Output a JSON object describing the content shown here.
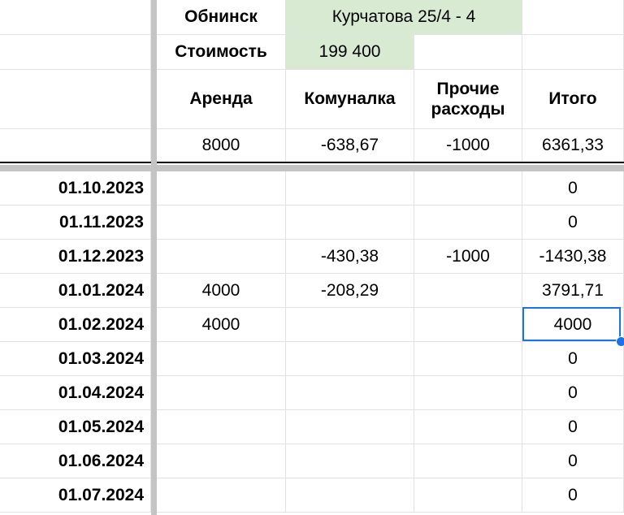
{
  "header": {
    "city": "Обнинск",
    "address": "Курчатова 25/4 - 4",
    "cost_label": "Стоимость",
    "cost_value": "199 400",
    "columns": [
      "Аренда",
      "Комуналка",
      "Прочие расходы",
      "Итого"
    ],
    "column_prochie_line1": "Прочие",
    "column_prochie_line2": "расходы",
    "totals": [
      "8000",
      "-638,67",
      "-1000",
      "6361,33"
    ]
  },
  "rows": [
    {
      "date": "01.10.2023",
      "rent": "",
      "utilities": "",
      "other": "",
      "total": "0"
    },
    {
      "date": "01.11.2023",
      "rent": "",
      "utilities": "",
      "other": "",
      "total": "0"
    },
    {
      "date": "01.12.2023",
      "rent": "",
      "utilities": "-430,38",
      "other": "-1000",
      "total": "-1430,38"
    },
    {
      "date": "01.01.2024",
      "rent": "4000",
      "utilities": "-208,29",
      "other": "",
      "total": "3791,71"
    },
    {
      "date": "01.02.2024",
      "rent": "4000",
      "utilities": "",
      "other": "",
      "total": "4000"
    },
    {
      "date": "01.03.2024",
      "rent": "",
      "utilities": "",
      "other": "",
      "total": "0"
    },
    {
      "date": "01.04.2024",
      "rent": "",
      "utilities": "",
      "other": "",
      "total": "0"
    },
    {
      "date": "01.05.2024",
      "rent": "",
      "utilities": "",
      "other": "",
      "total": "0"
    },
    {
      "date": "01.06.2024",
      "rent": "",
      "utilities": "",
      "other": "",
      "total": "0"
    },
    {
      "date": "01.07.2024",
      "rent": "",
      "utilities": "",
      "other": "",
      "total": "0"
    }
  ],
  "selection": {
    "row": 4,
    "column": "total"
  },
  "colors": {
    "fill_green": "#d9ead3",
    "selection": "#1a73e8",
    "grid": "#e2e2e2"
  }
}
